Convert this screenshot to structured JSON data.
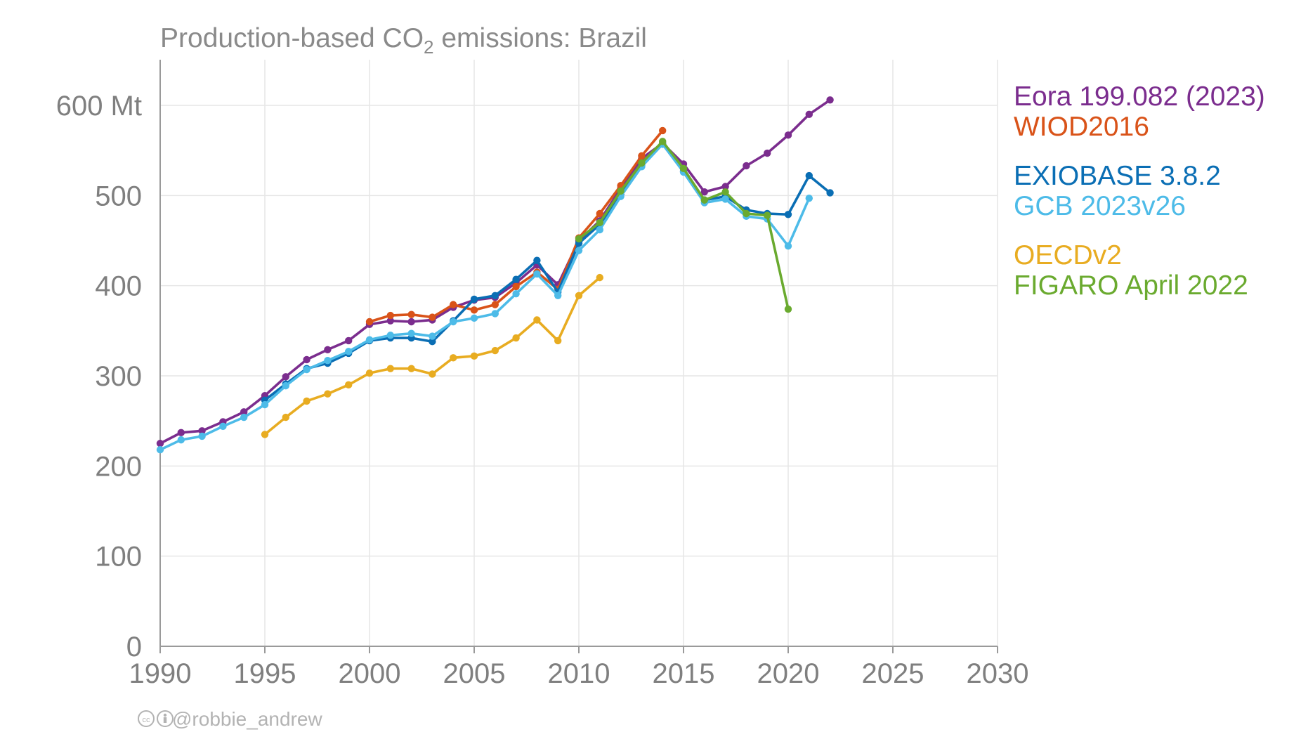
{
  "chart_data": {
    "type": "line",
    "title": "Production-based CO",
    "title_subscript": "2",
    "title_suffix": " emissions: Brazil",
    "xlim": [
      1990,
      2030
    ],
    "ylim": [
      0,
      650
    ],
    "x_ticks": [
      1990,
      1995,
      2000,
      2005,
      2010,
      2015,
      2020,
      2025,
      2030
    ],
    "x_tick_labels": [
      "1990",
      "1995",
      "2000",
      "2005",
      "2010",
      "2015",
      "2020",
      "2025",
      "2030"
    ],
    "y_ticks": [
      0,
      100,
      200,
      300,
      400,
      500,
      600
    ],
    "y_tick_labels": [
      "0",
      "100",
      "200",
      "300",
      "400",
      "500",
      "600 Mt"
    ],
    "grid": true,
    "legend_placement": "right",
    "series": [
      {
        "name": "Eora 199.082 (2023)",
        "color": "#7b2d8e",
        "x": [
          1990,
          1991,
          1992,
          1993,
          1994,
          1995,
          1996,
          1997,
          1998,
          1999,
          2000,
          2001,
          2002,
          2003,
          2004,
          2005,
          2006,
          2007,
          2008,
          2009,
          2010,
          2011,
          2012,
          2013,
          2014,
          2015,
          2016,
          2017,
          2018,
          2019,
          2020,
          2021,
          2022
        ],
        "y": [
          225,
          237,
          239,
          249,
          260,
          278,
          299,
          318,
          329,
          339,
          357,
          361,
          360,
          362,
          376,
          384,
          387,
          403,
          423,
          401,
          450,
          472,
          508,
          541,
          558,
          535,
          504,
          510,
          533,
          547,
          567,
          590,
          606
        ]
      },
      {
        "name": "WIOD2016",
        "color": "#d95319",
        "x": [
          2000,
          2001,
          2002,
          2003,
          2004,
          2005,
          2006,
          2007,
          2008,
          2009,
          2010,
          2011,
          2012,
          2013,
          2014
        ],
        "y": [
          360,
          367,
          368,
          365,
          379,
          373,
          379,
          399,
          415,
          396,
          453,
          480,
          511,
          544,
          572
        ]
      },
      {
        "name": "EXIOBASE 3.8.2",
        "color": "#0a6eb4",
        "x": [
          1995,
          1996,
          1997,
          1998,
          1999,
          2000,
          2001,
          2002,
          2003,
          2004,
          2005,
          2006,
          2007,
          2008,
          2009,
          2010,
          2011,
          2012,
          2013,
          2014,
          2015,
          2016,
          2017,
          2018,
          2019,
          2020,
          2021,
          2022
        ],
        "y": [
          273,
          291,
          308,
          314,
          325,
          339,
          342,
          342,
          338,
          361,
          385,
          389,
          407,
          428,
          393,
          447,
          468,
          501,
          533,
          557,
          527,
          495,
          499,
          484,
          480,
          479,
          522,
          503
        ]
      },
      {
        "name": "GCB 2023v26",
        "color": "#4dbbe8",
        "x": [
          1990,
          1991,
          1992,
          1993,
          1994,
          1995,
          1996,
          1997,
          1998,
          1999,
          2000,
          2001,
          2002,
          2003,
          2004,
          2005,
          2006,
          2007,
          2008,
          2009,
          2010,
          2011,
          2012,
          2013,
          2014,
          2015,
          2016,
          2017,
          2018,
          2019,
          2020,
          2021
        ],
        "y": [
          218,
          229,
          233,
          244,
          254,
          268,
          289,
          307,
          317,
          327,
          340,
          345,
          347,
          344,
          360,
          364,
          369,
          391,
          413,
          389,
          439,
          462,
          499,
          532,
          557,
          526,
          492,
          496,
          477,
          474,
          444,
          497
        ]
      },
      {
        "name": "OECDv2",
        "color": "#e8ac21",
        "x": [
          1995,
          1996,
          1997,
          1998,
          1999,
          2000,
          2001,
          2002,
          2003,
          2004,
          2005,
          2006,
          2007,
          2008,
          2009,
          2010,
          2011
        ],
        "y": [
          235,
          254,
          272,
          280,
          290,
          303,
          308,
          308,
          302,
          320,
          322,
          328,
          342,
          362,
          339,
          389,
          409
        ]
      },
      {
        "name": "FIGARO April 2022",
        "color": "#6aaa2f",
        "x": [
          2010,
          2011,
          2012,
          2013,
          2014,
          2015,
          2016,
          2017,
          2018,
          2019,
          2020
        ],
        "y": [
          452,
          470,
          505,
          536,
          560,
          530,
          495,
          504,
          480,
          478,
          374
        ]
      }
    ],
    "legend_groups": [
      [
        "Eora 199.082 (2023)",
        "WIOD2016"
      ],
      [
        "EXIOBASE 3.8.2",
        "GCB 2023v26"
      ],
      [
        "OECDv2",
        "FIGARO April 2022"
      ]
    ]
  },
  "credit": {
    "icons": "cc-by-icon",
    "handle": "@robbie_andrew"
  }
}
